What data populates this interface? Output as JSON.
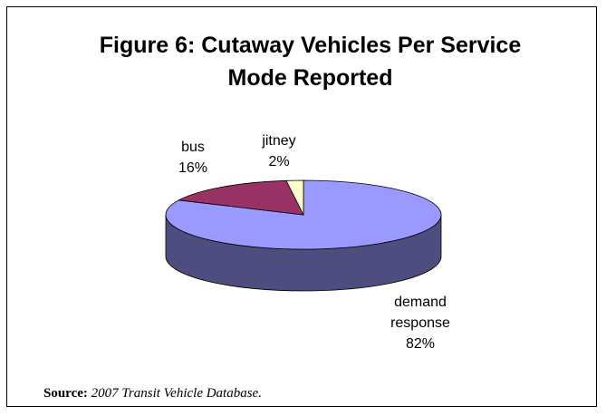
{
  "chart_data": {
    "type": "pie",
    "title": "Figure 6: Cutaway Vehicles Per Service Mode Reported",
    "categories": [
      "demand response",
      "bus",
      "jitney"
    ],
    "values": [
      82,
      16,
      2
    ],
    "value_labels": [
      "82%",
      "16%",
      "2%"
    ],
    "colors": [
      "#9999ff",
      "#993366",
      "#ffffcc"
    ],
    "side_colors": [
      "#4d4d80",
      "#4d1a33",
      "#808066"
    ],
    "source_label": "Source:",
    "source_text": "2007 Transit Vehicle Database."
  }
}
